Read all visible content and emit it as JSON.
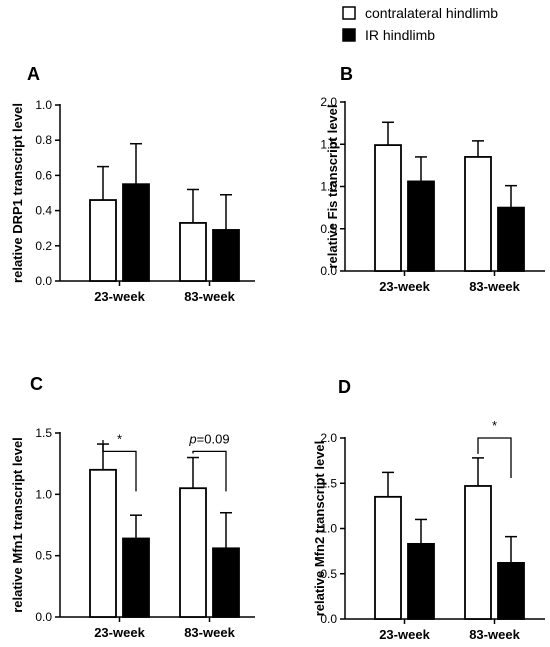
{
  "legend": {
    "items": [
      {
        "label": "contralateral hindlimb",
        "fill": "#ffffff"
      },
      {
        "label": "IR hindlimb",
        "fill": "#000000"
      }
    ]
  },
  "chart_data": [
    {
      "type": "bar",
      "panel": "A",
      "ylabel": "relative DRP1 transcript level",
      "ylim": [
        0,
        1.0
      ],
      "yticks": [
        "0.0",
        "0.2",
        "0.4",
        "0.6",
        "0.8",
        "1.0"
      ],
      "categories": [
        "23-week",
        "83-week"
      ],
      "series": [
        {
          "name": "contralateral hindlimb",
          "values": [
            0.46,
            0.33
          ],
          "errors": [
            0.19,
            0.19
          ]
        },
        {
          "name": "IR hindlimb",
          "values": [
            0.55,
            0.29
          ],
          "errors": [
            0.23,
            0.2
          ]
        }
      ],
      "annotations": []
    },
    {
      "type": "bar",
      "panel": "B",
      "ylabel": "relative Fis transcript level",
      "ylim": [
        0,
        2.0
      ],
      "yticks": [
        "0.0",
        "0.5",
        "1.0",
        "1.5",
        "2.0"
      ],
      "categories": [
        "23-week",
        "83-week"
      ],
      "series": [
        {
          "name": "contralateral hindlimb",
          "values": [
            1.49,
            1.35
          ],
          "errors": [
            0.27,
            0.19
          ]
        },
        {
          "name": "IR hindlimb",
          "values": [
            1.06,
            0.75
          ],
          "errors": [
            0.29,
            0.26
          ]
        }
      ],
      "annotations": []
    },
    {
      "type": "bar",
      "panel": "C",
      "ylabel": "relative Mfn1 transcript level",
      "ylim": [
        0,
        1.5
      ],
      "yticks": [
        "0.0",
        "0.5",
        "1.0",
        "1.5"
      ],
      "categories": [
        "23-week",
        "83-week"
      ],
      "series": [
        {
          "name": "contralateral hindlimb",
          "values": [
            1.2,
            1.05
          ],
          "errors": [
            0.21,
            0.25
          ]
        },
        {
          "name": "IR hindlimb",
          "values": [
            0.64,
            0.56
          ],
          "errors": [
            0.19,
            0.29
          ]
        }
      ],
      "annotations": [
        {
          "category": 0,
          "text": "*",
          "italic_prefix": "",
          "bracket_y": 1.35
        },
        {
          "category": 1,
          "text": "=0.09",
          "italic_prefix": "p",
          "bracket_y": 1.35
        }
      ]
    },
    {
      "type": "bar",
      "panel": "D",
      "ylabel": "relative Mfn2 transcript level",
      "ylim": [
        0,
        2.0
      ],
      "yticks": [
        "0.0",
        "0.5",
        "1.0",
        "1.5",
        "2.0"
      ],
      "categories": [
        "23-week",
        "83-week"
      ],
      "series": [
        {
          "name": "contralateral hindlimb",
          "values": [
            1.35,
            1.47
          ],
          "errors": [
            0.27,
            0.31
          ]
        },
        {
          "name": "IR hindlimb",
          "values": [
            0.83,
            0.62
          ],
          "errors": [
            0.27,
            0.29
          ]
        }
      ],
      "annotations": [
        {
          "category": 1,
          "text": "*",
          "italic_prefix": "",
          "bracket_y": 2.0
        }
      ]
    }
  ]
}
